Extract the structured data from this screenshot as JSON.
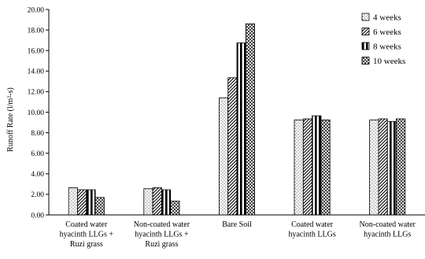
{
  "chart_data": {
    "type": "bar",
    "title": "",
    "xlabel": "",
    "ylabel": "Runoff Rate (l/m²-s)",
    "ylim": [
      0,
      20
    ],
    "yticks": [
      "0.00",
      "2.00",
      "4.00",
      "6.00",
      "8.00",
      "10.00",
      "12.00",
      "14.00",
      "16.00",
      "18.00",
      "20.00"
    ],
    "categories": [
      [
        "Coated water",
        "hyacinth LLGs +",
        "Ruzi grass"
      ],
      [
        "Non-coated water",
        "hyacinth LLGs +",
        "Ruzi grass"
      ],
      [
        "Bare Soil"
      ],
      [
        "Coated water",
        "hyacinth LLGs"
      ],
      [
        "Non-coated water",
        "hyacinth LLGs"
      ]
    ],
    "series": [
      {
        "name": "4 weeks",
        "pattern": "dots",
        "values": [
          2.65,
          2.55,
          11.4,
          9.25,
          9.25
        ]
      },
      {
        "name": "6 weeks",
        "pattern": "diagonal",
        "values": [
          2.45,
          2.65,
          13.35,
          9.35,
          9.35
        ]
      },
      {
        "name": "8 weeks",
        "pattern": "vertical",
        "values": [
          2.45,
          2.45,
          16.75,
          9.65,
          9.1
        ]
      },
      {
        "name": "10 weeks",
        "pattern": "cross",
        "values": [
          1.7,
          1.35,
          18.6,
          9.25,
          9.35
        ]
      }
    ],
    "legend_position": "top-right",
    "grid": false
  }
}
